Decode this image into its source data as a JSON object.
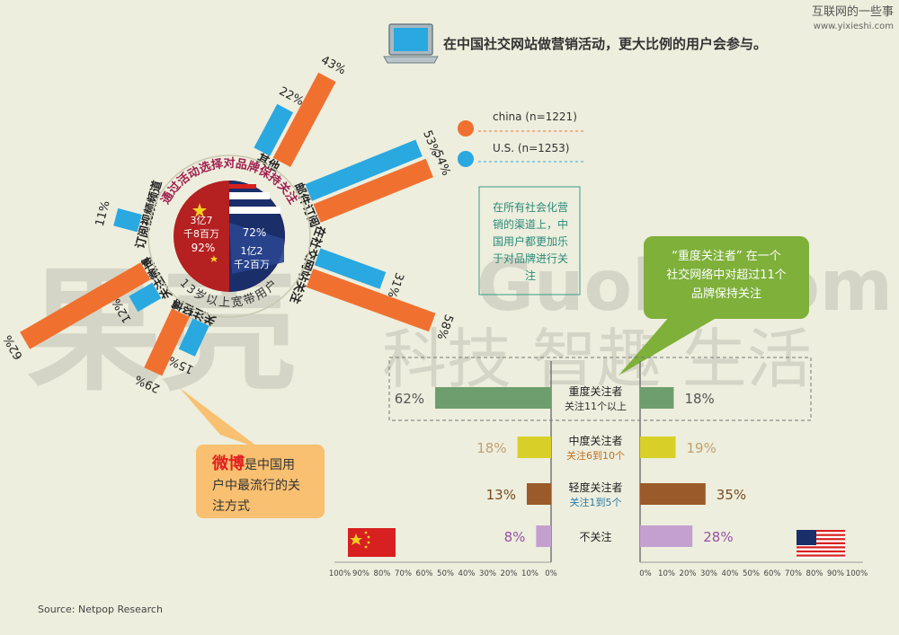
{
  "site": {
    "name": "互联网的一些事",
    "url": "www.yixieshi.com"
  },
  "headline": "在中国社交网站做营销活动，更大比例的用户会参与。",
  "legend": {
    "china": "china (n=1221)",
    "us": "U.S. (n=1253)"
  },
  "colors": {
    "china": "#f07030",
    "us": "#2aa8e0",
    "bg": "#edeedd",
    "heavy": "#6e9e6e",
    "medium": "#d8d028",
    "light": "#9b5a2a",
    "none": "#c4a0d0"
  },
  "callouts": {
    "channels": "在所有社会化营销的渠道上，中国用户都更加乐于对品牌进行关注",
    "heavy_quote": "“重度关注者” 在一个社交网络中对超过11个品牌保持关注",
    "weibo_highlight": "微博",
    "weibo_rest": "是中国用户中最流行的关注方式"
  },
  "watermark": {
    "logo": "果壳",
    "en": "Guokr.com",
    "slogan": "科技 智趣 生活"
  },
  "pie": {
    "title": "通过活动选择对品牌保持关注",
    "subtitle": "13岁以上宽带用户",
    "china_pop": "3亿7千8百万",
    "china_pct": "92%",
    "us_pct": "72%",
    "us_pop": "1亿2千2百万"
  },
  "source": "Source: Netpop Research",
  "chart_data": [
    {
      "type": "bar",
      "subtype": "radial",
      "categories": [
        "其他",
        "邮件订阅",
        "在社交网站关注",
        "关注轻博",
        "关注微博",
        "订阅视频频道"
      ],
      "series": [
        {
          "name": "china (n=1221)",
          "values": [
            43,
            54,
            58,
            29,
            62,
            0
          ]
        },
        {
          "name": "U.S. (n=1253)",
          "values": [
            22,
            53,
            31,
            15,
            12,
            11
          ]
        }
      ],
      "labels": {
        "china": [
          "43%",
          "54%",
          "58%",
          "29%",
          "62%",
          ""
        ],
        "us": [
          "22%",
          "53%",
          "31%",
          "15%",
          "12%",
          "11%"
        ]
      }
    },
    {
      "type": "bar",
      "subtype": "butterfly",
      "categories": [
        {
          "title": "重度关注者",
          "sub": "关注11个以上"
        },
        {
          "title": "中度关注者",
          "sub": "关注6到10个"
        },
        {
          "title": "轻度关注者",
          "sub": "关注1到5个"
        },
        {
          "title": "不关注",
          "sub": ""
        }
      ],
      "series": [
        {
          "name": "china",
          "values": [
            62,
            18,
            13,
            8
          ]
        },
        {
          "name": "us",
          "values": [
            18,
            19,
            35,
            28
          ]
        }
      ],
      "labels": {
        "china": [
          "62%",
          "18%",
          "13%",
          "8%"
        ],
        "us": [
          "18%",
          "19%",
          "35%",
          "28%"
        ]
      },
      "xlim": [
        0,
        100
      ],
      "left_ticks": [
        "100%",
        "90%",
        "80%",
        "70%",
        "60%",
        "50%",
        "40%",
        "30%",
        "20%",
        "10%",
        "0%"
      ],
      "right_ticks": [
        "0%",
        "10%",
        "20%",
        "30%",
        "40%",
        "50%",
        "60%",
        "70%",
        "80%",
        "90%",
        "100%"
      ]
    }
  ]
}
